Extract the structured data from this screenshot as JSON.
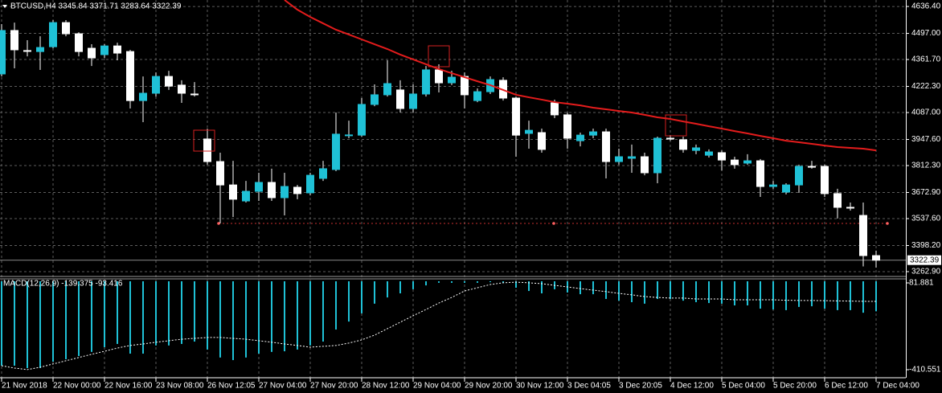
{
  "chart_data": [
    {
      "type": "candlestick",
      "title": "BTCUSD,H4  3345.84 3371.71 3283.64 3322.39",
      "categories": [
        "21 Nov 2018",
        null,
        null,
        null,
        "22 Nov 00:00",
        null,
        null,
        null,
        "22 Nov 16:00",
        null,
        null,
        null,
        "23 Nov 08:00",
        null,
        null,
        null,
        "26 Nov 12:05",
        null,
        null,
        null,
        "27 Nov 04:00",
        null,
        null,
        null,
        "27 Nov 20:00",
        null,
        null,
        null,
        "28 Nov 12:00",
        null,
        null,
        null,
        "29 Nov 04:00",
        null,
        null,
        null,
        "29 Nov 20:00",
        null,
        null,
        null,
        "30 Nov 12:00",
        null,
        null,
        null,
        "3 Dec 04:05",
        null,
        null,
        null,
        "3 Dec 20:05",
        null,
        null,
        null,
        "4 Dec 12:00",
        null,
        null,
        null,
        "5 Dec 04:00",
        null,
        null,
        null,
        "5 Dec 20:00",
        null,
        null,
        null,
        "6 Dec 12:00",
        null,
        null,
        null,
        "7 Dec 04:00"
      ],
      "open": [
        4287,
        4512,
        4408,
        4403,
        4428,
        4553,
        4495,
        4420,
        4387,
        4432,
        4403,
        4149,
        4187,
        4274,
        4229,
        4183,
        3950,
        3833,
        3712,
        3629,
        3679,
        3725,
        3646,
        3700,
        3671,
        3746,
        3792,
        3970,
        3970,
        4129,
        4179,
        4204,
        4108,
        4183,
        4308,
        4241,
        4274,
        4149,
        4195,
        4254,
        4162,
        3979,
        3983,
        4137,
        4075,
        3941,
        3970,
        3987,
        3833,
        3850,
        3858,
        3775,
        3954,
        3946,
        3891,
        3866,
        3879,
        3841,
        3825,
        3837,
        3704,
        3675,
        3712,
        3808,
        3808,
        3667,
        3596,
        3554,
        3345.84
      ],
      "high": [
        4545,
        4553,
        4462,
        4482,
        4566,
        4566,
        4503,
        4441,
        4441,
        4449,
        4412,
        4274,
        4295,
        4303,
        4254,
        4245,
        4004,
        3879,
        3837,
        3733,
        3775,
        3796,
        3775,
        3712,
        3775,
        3837,
        4087,
        4045,
        4162,
        4233,
        4358,
        4254,
        4233,
        4328,
        4337,
        4303,
        4295,
        4212,
        4274,
        4270,
        4170,
        4045,
        4004,
        4154,
        4087,
        3983,
        4004,
        4004,
        3900,
        3921,
        3879,
        3962,
        3970,
        3962,
        3921,
        3896,
        3891,
        3858,
        3871,
        3846,
        3733,
        3721,
        3817,
        3837,
        3817,
        3692,
        3621,
        3621,
        3371.71
      ],
      "low": [
        4274,
        4316,
        4378,
        4308,
        4420,
        4482,
        4378,
        4328,
        4370,
        4358,
        4108,
        4037,
        4170,
        4204,
        4137,
        4170,
        3817,
        3513,
        3546,
        3621,
        3629,
        3629,
        3554,
        3638,
        3658,
        3733,
        3783,
        3954,
        3962,
        4120,
        4170,
        4087,
        4087,
        4170,
        4191,
        4229,
        4108,
        4141,
        4183,
        4149,
        3858,
        3900,
        3879,
        4058,
        3900,
        3912,
        3954,
        3746,
        3817,
        3775,
        3762,
        3721,
        3941,
        3879,
        3871,
        3854,
        3787,
        3796,
        3817,
        3650,
        3692,
        3663,
        3671,
        3796,
        3650,
        3538,
        3579,
        3290,
        3283.64
      ],
      "close": [
        4512,
        4412,
        4407,
        4424,
        4553,
        4495,
        4403,
        4370,
        4432,
        4395,
        4149,
        4187,
        4274,
        4224,
        4187,
        4182,
        3833,
        3712,
        3638,
        3679,
        3725,
        3646,
        3704,
        3667,
        3762,
        3796,
        3975,
        3971,
        4129,
        4179,
        4237,
        4108,
        4183,
        4308,
        4241,
        4270,
        4179,
        4195,
        4258,
        4162,
        3970,
        3995,
        3896,
        4075,
        3954,
        3970,
        3987,
        3833,
        3858,
        3858,
        3775,
        3954,
        3953,
        3896,
        3904,
        3883,
        3841,
        3817,
        3837,
        3704,
        3712,
        3712,
        3808,
        3807,
        3667,
        3596,
        3595,
        3346,
        3322.39
      ],
      "bull_color": "#1fc1d6",
      "bear_color": "#ffffff",
      "ma_values": [
        null,
        null,
        null,
        null,
        null,
        null,
        null,
        null,
        null,
        null,
        null,
        null,
        null,
        null,
        null,
        null,
        null,
        null,
        null,
        null,
        null,
        null,
        4670,
        4620,
        4582,
        4549,
        4516,
        4491,
        4466,
        4441,
        4416,
        4387,
        4362,
        4337,
        4312,
        4291,
        4270,
        4249,
        4229,
        4204,
        4179,
        4166,
        4154,
        4141,
        4133,
        4124,
        4112,
        4104,
        4095,
        4087,
        4075,
        4062,
        4054,
        4041,
        4029,
        4016,
        4004,
        3991,
        3979,
        3966,
        3954,
        3941,
        3933,
        3925,
        3916,
        3908,
        3904,
        3900,
        3891
      ],
      "ma_color": "#e41c1c",
      "last_price": 3322.39,
      "ylim": [
        3242,
        4670
      ],
      "yticks": [
        {
          "value": 4636.4,
          "label": "4636.40"
        },
        {
          "value": 4497.0,
          "label": "4497.00"
        },
        {
          "value": 4361.7,
          "label": "4361.70"
        },
        {
          "value": 4222.3,
          "label": "4222.30"
        },
        {
          "value": 4087.0,
          "label": "4087.00"
        },
        {
          "value": 3947.6,
          "label": "3947.60"
        },
        {
          "value": 3812.3,
          "label": "3812.30"
        },
        {
          "value": 3672.9,
          "label": "3672.90"
        },
        {
          "value": 3537.6,
          "label": "3537.60"
        },
        {
          "value": 3398.2,
          "label": "3398.20"
        },
        {
          "value": 3262.9,
          "label": "3262.90"
        }
      ],
      "grid": true
    },
    {
      "type": "macd",
      "title": "MACD(12,26,9) -139.375 -93.416",
      "values": [
        -392,
        -392,
        -403,
        -403,
        -373,
        -362,
        -347,
        -328,
        -306,
        -291,
        -336,
        -336,
        -298,
        -298,
        -291,
        -280,
        -317,
        -354,
        -366,
        -354,
        -336,
        -328,
        -325,
        -317,
        -298,
        -280,
        -224,
        -187,
        -149,
        -104,
        -75,
        -56,
        -37,
        -19,
        -7,
        -7,
        -7,
        -7,
        -4,
        -7,
        -30,
        -45,
        -56,
        -37,
        -52,
        -60,
        -60,
        -82,
        -90,
        -97,
        -104,
        -82,
        -82,
        -90,
        -97,
        -101,
        -104,
        -112,
        -112,
        -127,
        -131,
        -134,
        -119,
        -116,
        -127,
        -134,
        -134,
        -146,
        -139.375
      ],
      "signal": [
        -392,
        -403,
        -410,
        -399,
        -384,
        -369,
        -354,
        -339,
        -325,
        -310,
        -298,
        -291,
        -283,
        -276,
        -269,
        -265,
        -261,
        -261,
        -265,
        -269,
        -276,
        -283,
        -291,
        -298,
        -306,
        -302,
        -298,
        -287,
        -272,
        -250,
        -220,
        -190,
        -160,
        -131,
        -101,
        -75,
        -45,
        -30,
        -15,
        -7,
        -4,
        -7,
        -11,
        -19,
        -26,
        -34,
        -41,
        -48,
        -56,
        -63,
        -71,
        -75,
        -78,
        -78,
        -82,
        -82,
        -82,
        -86,
        -86,
        -86,
        -86,
        -88,
        -89,
        -89,
        -90,
        -91,
        -92,
        -93,
        -93.416
      ],
      "color": "#1fc1d6",
      "signal_color": "#ffffff",
      "ylim": [
        -410.551,
        81.881
      ],
      "yticks": [
        81.881,
        -410.551
      ]
    }
  ]
}
